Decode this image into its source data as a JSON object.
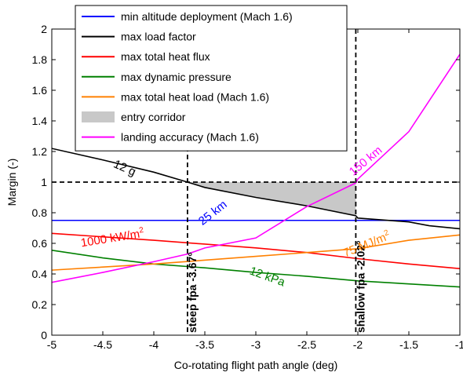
{
  "chart_data": {
    "type": "line",
    "xlabel": "Co-rotating flight path angle (deg)",
    "ylabel": "Margin (-)",
    "xlim": [
      -5,
      -1
    ],
    "ylim": [
      0,
      2
    ],
    "x_ticks": [
      -5,
      -4.5,
      -4,
      -3.5,
      -3,
      -2.5,
      -2,
      -1.5,
      -1
    ],
    "x_tick_labels": [
      "-5",
      "-4.5",
      "-4",
      "-3.5",
      "-3",
      "-2.5",
      "-2",
      "-1.5",
      "-1"
    ],
    "y_ticks": [
      0,
      0.2,
      0.4,
      0.6,
      0.8,
      1,
      1.2,
      1.4,
      1.6,
      1.8,
      2
    ],
    "y_tick_labels": [
      "0",
      "0.2",
      "0.4",
      "0.6",
      "0.8",
      "1",
      "1.2",
      "1.4",
      "1.6",
      "1.8",
      "2"
    ],
    "grid": false,
    "legend_position": "top-center",
    "series": [
      {
        "name": "min altitude deployment (Mach 1.6)",
        "color": "#0000ff",
        "style": "solid",
        "x": [
          -5,
          -1
        ],
        "y": [
          0.75,
          0.75
        ]
      },
      {
        "name": "max load factor",
        "color": "#000000",
        "style": "solid",
        "x": [
          -5,
          -4.5,
          -4,
          -3.67,
          -3.5,
          -3,
          -2.5,
          -2.02,
          -2.0,
          -1.5,
          -1.3,
          -1.0
        ],
        "y": [
          1.22,
          1.145,
          1.065,
          1.0,
          0.965,
          0.9,
          0.845,
          0.78,
          0.765,
          0.74,
          0.715,
          0.695
        ]
      },
      {
        "name": "max total heat flux",
        "color": "#ff0000",
        "style": "solid",
        "x": [
          -5,
          -4,
          -3,
          -2.5,
          -2,
          -1.5,
          -1
        ],
        "y": [
          0.665,
          0.62,
          0.57,
          0.54,
          0.5,
          0.465,
          0.435
        ]
      },
      {
        "name": "max dynamic pressure",
        "color": "#008000",
        "style": "solid",
        "x": [
          -5,
          -4.5,
          -4,
          -3.5,
          -3,
          -2.5,
          -2,
          -1.5,
          -1
        ],
        "y": [
          0.555,
          0.505,
          0.465,
          0.44,
          0.41,
          0.385,
          0.355,
          0.335,
          0.315
        ]
      },
      {
        "name": "max total heat load (Mach 1.6)",
        "color": "#ff8000",
        "style": "solid",
        "x": [
          -5,
          -4,
          -3,
          -2,
          -1.5,
          -1
        ],
        "y": [
          0.425,
          0.465,
          0.515,
          0.565,
          0.62,
          0.655
        ]
      },
      {
        "name": "landing accuracy (Mach 1.6)",
        "color": "#ff00ff",
        "style": "solid",
        "x": [
          -5,
          -4.5,
          -4,
          -3.67,
          -3.5,
          -3,
          -2.5,
          -2.02,
          -2,
          -1.5,
          -1
        ],
        "y": [
          0.345,
          0.41,
          0.48,
          0.53,
          0.57,
          0.635,
          0.84,
          0.995,
          1.02,
          1.33,
          1.835
        ]
      },
      {
        "name": "",
        "color": "#000000",
        "style": "dashed",
        "x": [
          -5,
          -1
        ],
        "y": [
          1.0,
          1.0
        ]
      }
    ],
    "entry_corridor": {
      "name": "entry corridor",
      "color": "#c8c8c8",
      "x": [
        -3.67,
        -3.5,
        -3,
        -2.5,
        -2.02
      ],
      "y_lower": [
        1.0,
        0.965,
        0.9,
        0.845,
        0.78
      ],
      "y_upper": [
        1.0,
        1.0,
        1.0,
        1.0,
        1.0
      ]
    },
    "vertical_lines": [
      {
        "x": -3.67,
        "label": "steep fpa -3.67°",
        "style": "dashed"
      },
      {
        "x": -2.02,
        "label": "shallow fpa -2.02°",
        "style": "dashed"
      }
    ],
    "annotations": [
      {
        "text": "12 g",
        "x": -4.3,
        "y": 1.07,
        "angle": 24,
        "color": "#000000"
      },
      {
        "text": "25 km",
        "x": -3.4,
        "y": 0.78,
        "angle": -38,
        "color": "#0000ff"
      },
      {
        "text": "1000 kW/m",
        "sup": "2",
        "x": -4.4,
        "y": 0.61,
        "angle": -9,
        "color": "#ff0000"
      },
      {
        "text": "75 MJ/m",
        "sup": "2",
        "x": -1.9,
        "y": 0.57,
        "angle": -22,
        "color": "#ff8000"
      },
      {
        "text": "12 kPa",
        "x": -2.9,
        "y": 0.36,
        "angle": 20,
        "color": "#008000"
      },
      {
        "text": "150 km",
        "x": -1.9,
        "y": 1.12,
        "angle": -40,
        "color": "#ff00ff"
      }
    ]
  }
}
